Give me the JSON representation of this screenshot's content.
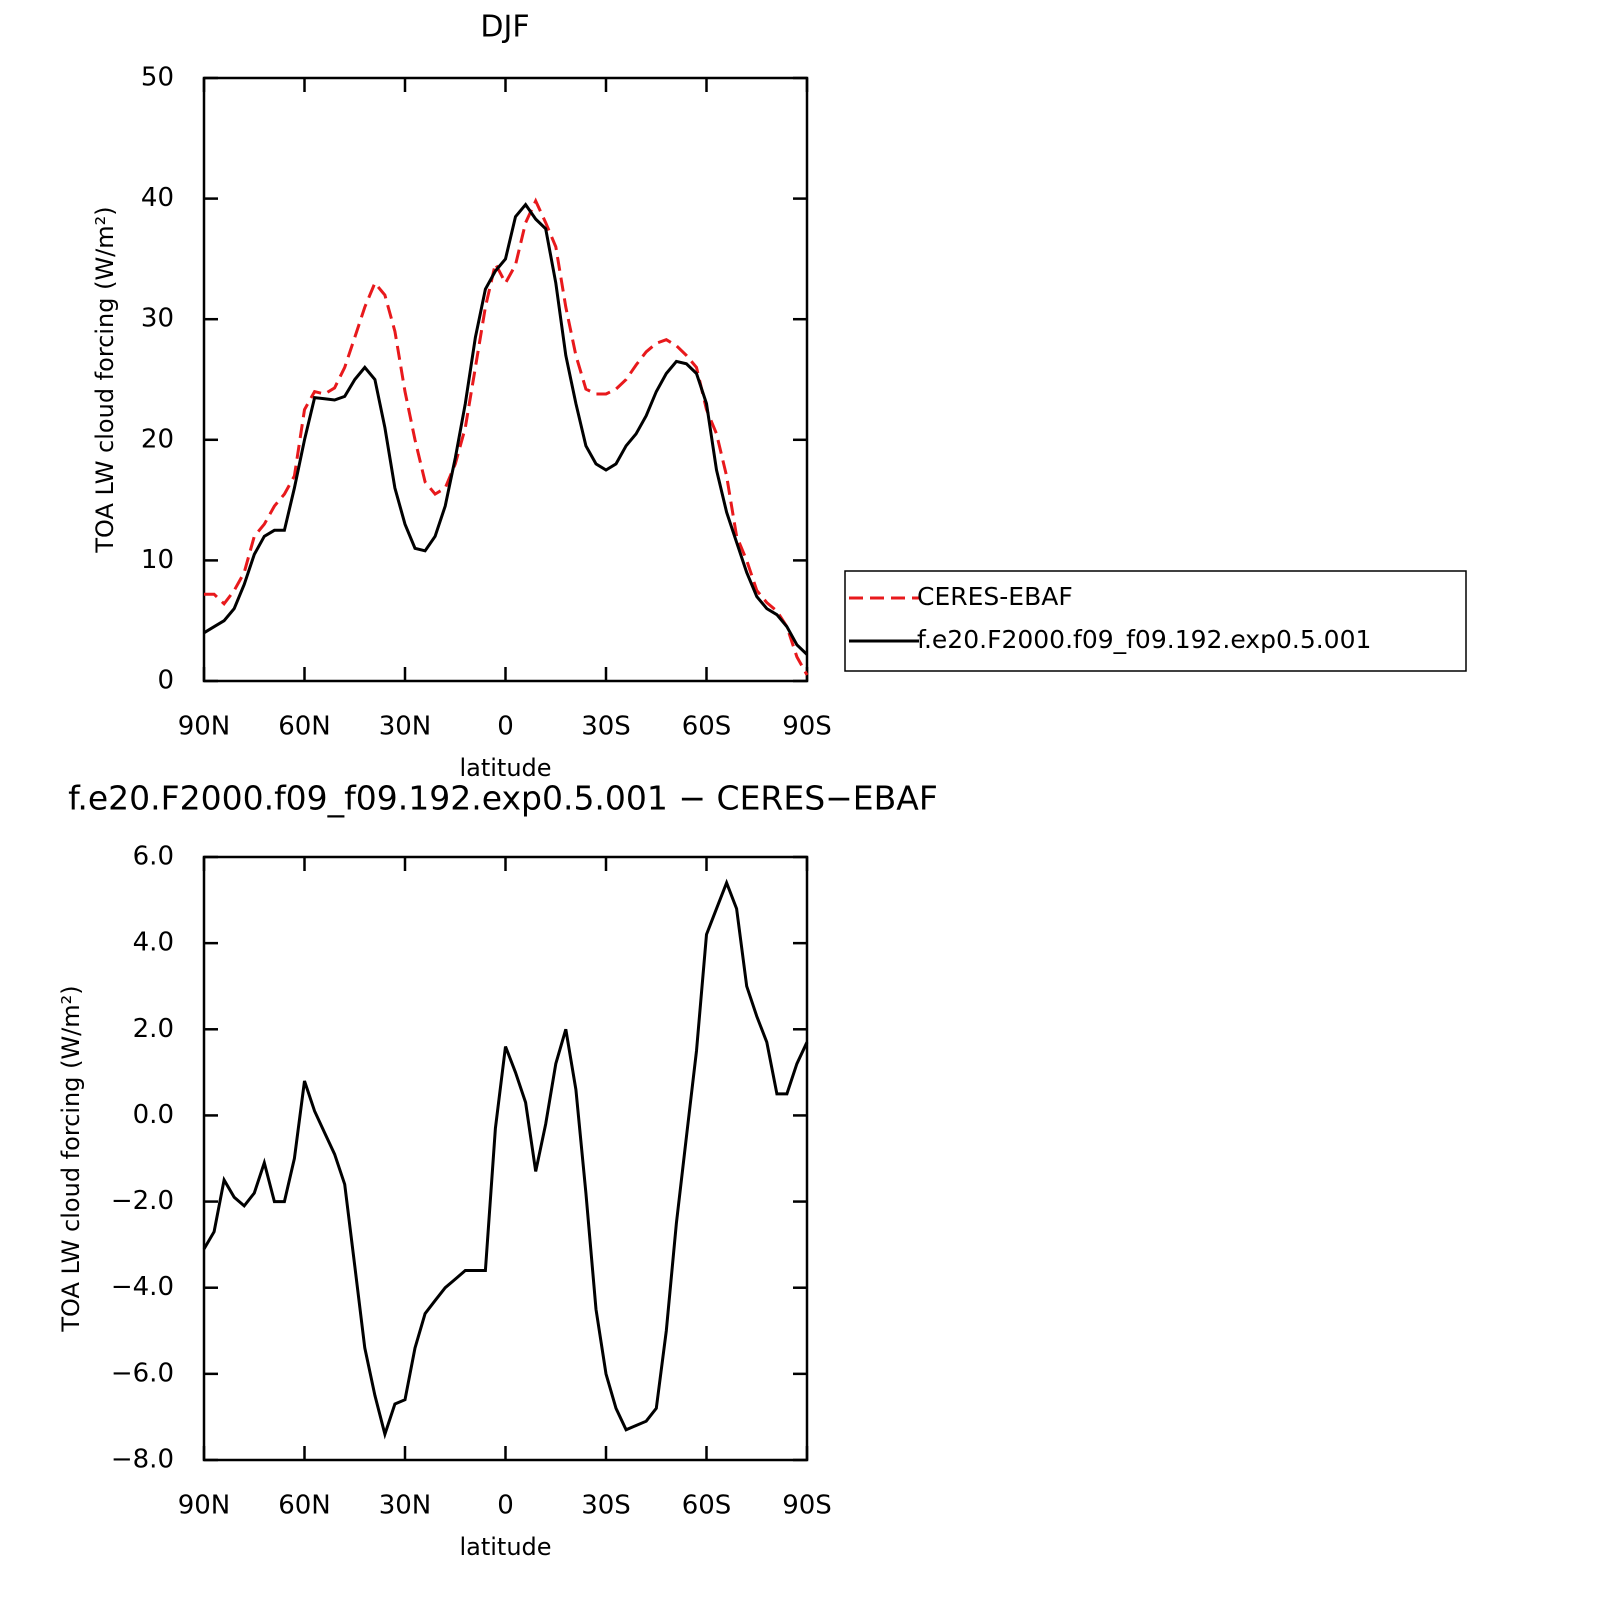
{
  "chart_data": [
    {
      "type": "line",
      "title": "DJF",
      "xlabel": "latitude",
      "ylabel": "TOA LW cloud forcing (W/m²)",
      "x": [
        90,
        87,
        84,
        81,
        78,
        75,
        72,
        69,
        66,
        63,
        60,
        57,
        54,
        51,
        48,
        45,
        42,
        39,
        36,
        33,
        30,
        27,
        24,
        21,
        18,
        15,
        12,
        9,
        6,
        3,
        0,
        -3,
        -6,
        -9,
        -12,
        -15,
        -18,
        -21,
        -24,
        -27,
        -30,
        -33,
        -36,
        -39,
        -42,
        -45,
        -48,
        -51,
        -54,
        -57,
        -60,
        -63,
        -66,
        -69,
        -72,
        -75,
        -78,
        -81,
        -84,
        -87,
        -90
      ],
      "xlim": [
        90,
        -90
      ],
      "xticks": [
        {
          "value": 90,
          "label": "90N"
        },
        {
          "value": 60,
          "label": "60N"
        },
        {
          "value": 30,
          "label": "30N"
        },
        0,
        {
          "value": -30,
          "label": "30S"
        },
        {
          "value": -60,
          "label": "60S"
        },
        {
          "value": -90,
          "label": "90S"
        }
      ],
      "ylim": [
        0,
        50
      ],
      "yticks": [
        0,
        10,
        20,
        30,
        40,
        50
      ],
      "legend": "right",
      "series": [
        {
          "name": "CERES-EBAF",
          "color": "#e8191c",
          "dash": true,
          "values": [
            7.2,
            7.2,
            6.4,
            7.5,
            9,
            12,
            13,
            14.5,
            15.5,
            17,
            22.5,
            24,
            23.8,
            24.3,
            26,
            28.5,
            31,
            33,
            32,
            29,
            24,
            20,
            16.5,
            15.5,
            16,
            18,
            21,
            26,
            31,
            34.6,
            33,
            34.5,
            38,
            39.8,
            38,
            36,
            31,
            27,
            24.2,
            23.8,
            23.8,
            24.2,
            25,
            26.2,
            27.3,
            28,
            28.3,
            27.8,
            27,
            26,
            22.5,
            20.5,
            17,
            12,
            10,
            7.5,
            6.5,
            5.8,
            4.5,
            2,
            0.5
          ]
        },
        {
          "name": "f.e20.F2000.f09_f09.192.exp0.5.001",
          "color": "#000000",
          "dash": false,
          "values": [
            4,
            4.5,
            5,
            6,
            8,
            10.5,
            12,
            12.5,
            12.5,
            16,
            20,
            23.5,
            23.4,
            23.3,
            23.6,
            25,
            26,
            25,
            21,
            16,
            13,
            11,
            10.8,
            12,
            14.5,
            18.5,
            23,
            28.5,
            32.5,
            34,
            35,
            38.5,
            39.5,
            38.3,
            37.5,
            33,
            27,
            23,
            19.5,
            18,
            17.5,
            18,
            19.5,
            20.5,
            22,
            24,
            25.5,
            26.5,
            26.3,
            25.5,
            23,
            17.5,
            14,
            11.5,
            9,
            7,
            6,
            5.5,
            4.5,
            3,
            2.2
          ]
        }
      ]
    },
    {
      "type": "line",
      "title": "f.e20.F2000.f09_f09.192.exp0.5.001 − CERES−EBAF",
      "xlabel": "latitude",
      "ylabel": "TOA LW cloud forcing (W/m²)",
      "x": [
        90,
        87,
        84,
        81,
        78,
        75,
        72,
        69,
        66,
        63,
        60,
        57,
        54,
        51,
        48,
        45,
        42,
        39,
        36,
        33,
        30,
        27,
        24,
        21,
        18,
        15,
        12,
        9,
        6,
        3,
        0,
        -3,
        -6,
        -9,
        -12,
        -15,
        -18,
        -21,
        -24,
        -27,
        -30,
        -33,
        -36,
        -39,
        -42,
        -45,
        -48,
        -51,
        -54,
        -57,
        -60,
        -63,
        -66,
        -69,
        -72,
        -75,
        -78,
        -81,
        -84,
        -87,
        -90
      ],
      "xlim": [
        90,
        -90
      ],
      "xticks": [
        {
          "value": 90,
          "label": "90N"
        },
        {
          "value": 60,
          "label": "60N"
        },
        {
          "value": 30,
          "label": "30N"
        },
        0,
        {
          "value": -30,
          "label": "30S"
        },
        {
          "value": -60,
          "label": "60S"
        },
        {
          "value": -90,
          "label": "90S"
        }
      ],
      "ylim": [
        -8,
        6
      ],
      "yticks": [
        {
          "value": -8,
          "label": "−8.0"
        },
        {
          "value": -6,
          "label": "−6.0"
        },
        {
          "value": -4,
          "label": "−4.0"
        },
        {
          "value": -2,
          "label": "−2.0"
        },
        {
          "value": 0,
          "label": "0.0"
        },
        {
          "value": 2,
          "label": "2.0"
        },
        {
          "value": 4,
          "label": "4.0"
        },
        {
          "value": 6,
          "label": "6.0"
        }
      ],
      "series": [
        {
          "color": "#000000",
          "values": [
            -3.1,
            -2.7,
            -1.5,
            -1.9,
            -2.1,
            -1.8,
            -1.1,
            -2.0,
            -2.0,
            -1.0,
            0.8,
            0.1,
            -0.4,
            -0.9,
            -1.6,
            -3.5,
            -5.4,
            -6.5,
            -7.4,
            -6.7,
            -6.6,
            -5.4,
            -4.6,
            -4.3,
            -4.0,
            -3.8,
            -3.6,
            -3.6,
            -3.6,
            -0.3,
            1.6,
            1.0,
            0.3,
            -1.3,
            -0.2,
            1.2,
            2.0,
            0.6,
            -1.8,
            -4.5,
            -6.0,
            -6.8,
            -7.3,
            -7.2,
            -7.1,
            -6.8,
            -5.0,
            -2.5,
            -0.5,
            1.5,
            4.2,
            4.8,
            5.4,
            4.8,
            3.0,
            2.3,
            1.7,
            0.5,
            0.5,
            1.2,
            1.7
          ]
        }
      ]
    }
  ]
}
